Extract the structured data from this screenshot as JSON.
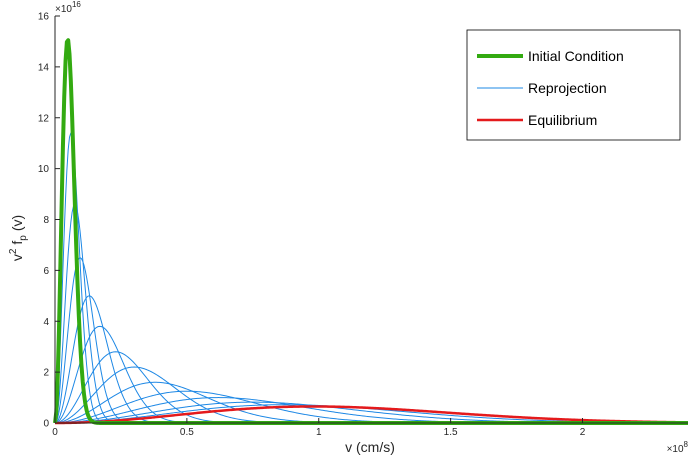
{
  "chart_data": {
    "type": "line",
    "xlabel": "v (cm/s)",
    "ylabel": {
      "base": "v",
      "superscript": "2",
      "func": "f",
      "subscript": "p",
      "arg": "(v)"
    },
    "x_multiplier": {
      "base": "×10",
      "exponent": "8"
    },
    "y_multiplier": {
      "base": "×10",
      "exponent": "16"
    },
    "xlim": [
      0,
      2.4
    ],
    "ylim": [
      0,
      16
    ],
    "x_unit_scale": 100000000,
    "y_unit_scale": 1e+16,
    "xticks": [
      0,
      0.5,
      1,
      1.5,
      2
    ],
    "xtick_labels": [
      "0",
      "0.5",
      "1",
      "1.5",
      "2"
    ],
    "yticks": [
      0,
      2,
      4,
      6,
      8,
      10,
      12,
      14,
      16
    ],
    "ytick_labels": [
      "0",
      "2",
      "4",
      "6",
      "8",
      "10",
      "12",
      "14",
      "16"
    ],
    "grid": false,
    "legend_position": "top-right",
    "legend": [
      {
        "label": "Initial Condition",
        "color": "#33aa11",
        "width": 4
      },
      {
        "label": "Reprojection",
        "color": "#1e88e5",
        "width": 1
      },
      {
        "label": "Equilibrium",
        "color": "#e41a1c",
        "width": 2.5
      }
    ],
    "series": [
      {
        "name": "Initial Condition",
        "role": "initial",
        "peak_x": 0.048,
        "peak_y": 15.1,
        "color": "#33aa11"
      },
      {
        "name": "Reprojection",
        "role": "reprojection",
        "peak_x": 0.06,
        "peak_y": 11.4,
        "color": "#1e88e5"
      },
      {
        "role": "reprojection",
        "peak_x": 0.075,
        "peak_y": 8.6,
        "color": "#1e88e5"
      },
      {
        "role": "reprojection",
        "peak_x": 0.095,
        "peak_y": 6.5,
        "color": "#1e88e5"
      },
      {
        "role": "reprojection",
        "peak_x": 0.13,
        "peak_y": 5.0,
        "color": "#1e88e5"
      },
      {
        "role": "reprojection",
        "peak_x": 0.17,
        "peak_y": 3.8,
        "color": "#1e88e5"
      },
      {
        "role": "reprojection",
        "peak_x": 0.23,
        "peak_y": 2.8,
        "color": "#1e88e5"
      },
      {
        "role": "reprojection",
        "peak_x": 0.3,
        "peak_y": 2.2,
        "color": "#1e88e5"
      },
      {
        "role": "reprojection",
        "peak_x": 0.38,
        "peak_y": 1.6,
        "color": "#1e88e5"
      },
      {
        "role": "reprojection",
        "peak_x": 0.5,
        "peak_y": 1.25,
        "color": "#1e88e5"
      },
      {
        "role": "reprojection",
        "peak_x": 0.62,
        "peak_y": 1.0,
        "color": "#1e88e5"
      },
      {
        "role": "reprojection",
        "peak_x": 0.75,
        "peak_y": 0.82,
        "color": "#1e88e5"
      },
      {
        "role": "reprojection",
        "peak_x": 0.87,
        "peak_y": 0.72,
        "color": "#1e88e5"
      },
      {
        "name": "Equilibrium",
        "role": "equilibrium",
        "peak_x": 0.98,
        "peak_y": 0.65,
        "color": "#e41a1c"
      }
    ]
  }
}
